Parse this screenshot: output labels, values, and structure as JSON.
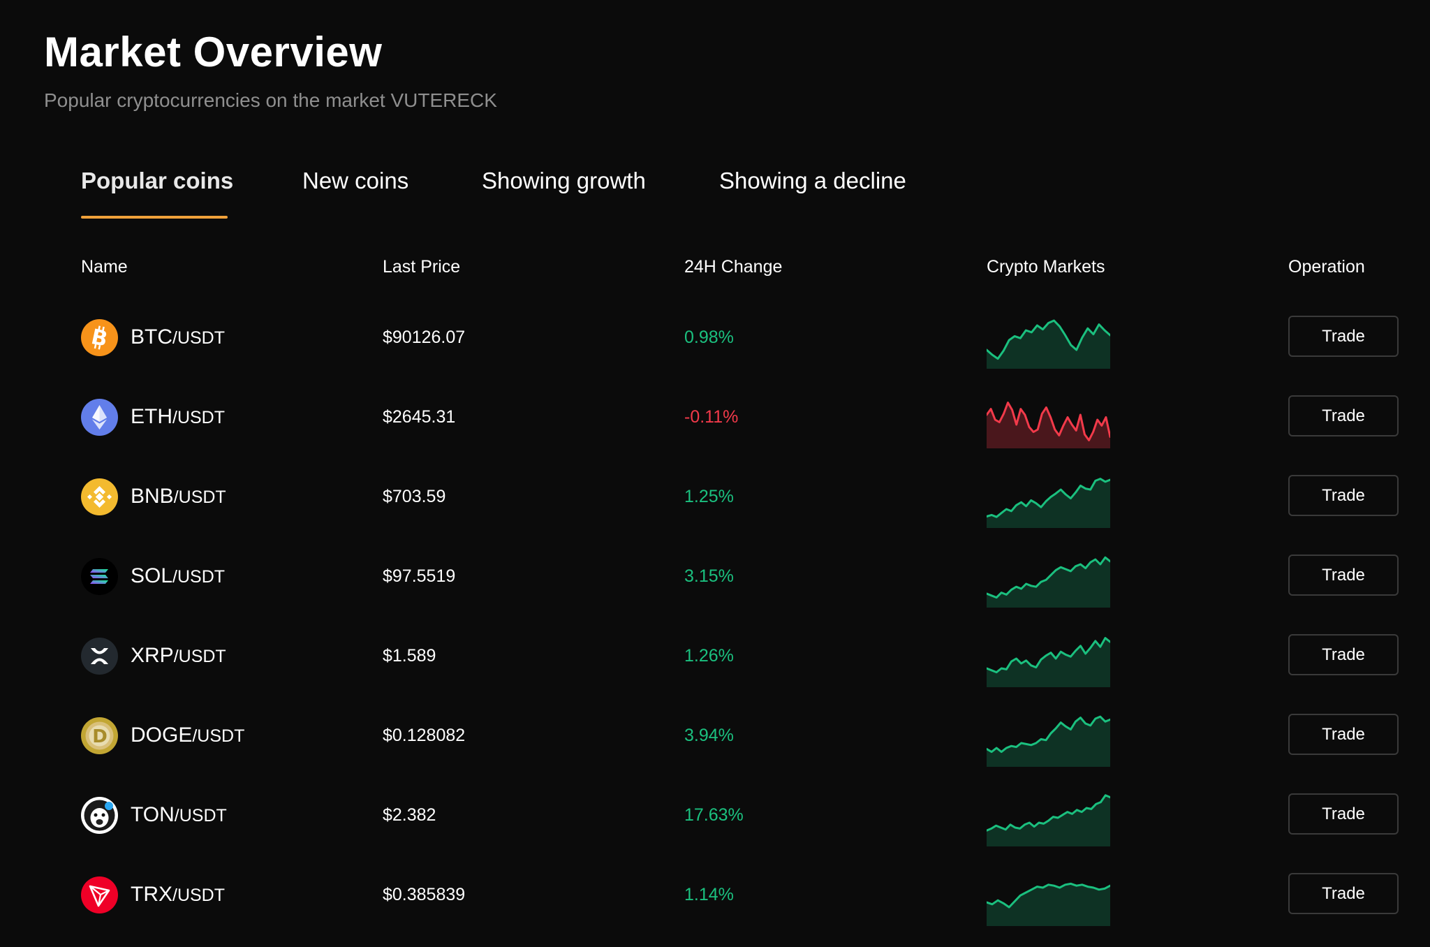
{
  "header": {
    "title": "Market Overview",
    "subtitle": "Popular cryptocurrencies on the market VUTERECK"
  },
  "tabs": [
    {
      "label": "Popular coins",
      "active": true
    },
    {
      "label": "New coins",
      "active": false
    },
    {
      "label": "Showing growth",
      "active": false
    },
    {
      "label": "Showing a decline",
      "active": false
    }
  ],
  "table": {
    "columns": [
      "Name",
      "Last Price",
      "24H Change",
      "Crypto Markets",
      "Operation"
    ],
    "rows": [
      {
        "base": "BTC",
        "quote": "/USDT",
        "price": "$90126.07",
        "change": "0.98%",
        "trend": "up",
        "icon": "bitcoin-icon",
        "spark": [
          30,
          20,
          12,
          28,
          50,
          58,
          54,
          70,
          66,
          80,
          72,
          85,
          90,
          78,
          60,
          40,
          30,
          55,
          74,
          62,
          82,
          70,
          60
        ]
      },
      {
        "base": "ETH",
        "quote": "/USDT",
        "price": "$2645.31",
        "change": "-0.11%",
        "trend": "down",
        "icon": "ethereum-icon",
        "spark": [
          60,
          72,
          50,
          45,
          62,
          85,
          70,
          40,
          72,
          60,
          35,
          25,
          30,
          62,
          75,
          55,
          30,
          18,
          38,
          55,
          40,
          28,
          60,
          20,
          8,
          25,
          50,
          38,
          55,
          15
        ]
      },
      {
        "base": "BNB",
        "quote": "/USDT",
        "price": "$703.59",
        "change": "1.25%",
        "trend": "up",
        "icon": "bnb-icon",
        "spark": [
          15,
          18,
          14,
          22,
          30,
          26,
          38,
          44,
          36,
          48,
          42,
          34,
          46,
          55,
          62,
          70,
          60,
          52,
          64,
          78,
          72,
          70,
          88,
          92,
          86,
          90
        ]
      },
      {
        "base": "SOL",
        "quote": "/USDT",
        "price": "$97.5519",
        "change": "3.15%",
        "trend": "up",
        "icon": "solana-icon",
        "spark": [
          20,
          16,
          12,
          22,
          18,
          28,
          34,
          30,
          40,
          36,
          34,
          44,
          48,
          58,
          68,
          74,
          70,
          66,
          76,
          80,
          72,
          84,
          90,
          80,
          94,
          86
        ]
      },
      {
        "base": "XRP",
        "quote": "/USDT",
        "price": "$1.589",
        "change": "1.26%",
        "trend": "up",
        "icon": "xrp-icon",
        "spark": [
          30,
          26,
          22,
          30,
          28,
          44,
          50,
          40,
          46,
          36,
          32,
          48,
          56,
          62,
          50,
          64,
          58,
          54,
          66,
          76,
          60,
          72,
          86,
          74,
          92,
          84
        ]
      },
      {
        "base": "DOGE",
        "quote": "/USDT",
        "price": "$0.128082",
        "change": "3.94%",
        "trend": "up",
        "icon": "dogecoin-icon",
        "spark": [
          28,
          22,
          30,
          22,
          30,
          34,
          32,
          40,
          38,
          36,
          40,
          48,
          46,
          60,
          70,
          82,
          74,
          68,
          84,
          92,
          80,
          76,
          90,
          94,
          84,
          88
        ]
      },
      {
        "base": "TON",
        "quote": "/USDT",
        "price": "$2.382",
        "change": "17.63%",
        "trend": "up",
        "icon": "toncoin-icon",
        "spark": [
          24,
          28,
          34,
          30,
          26,
          36,
          30,
          28,
          36,
          40,
          32,
          40,
          38,
          44,
          52,
          50,
          56,
          62,
          58,
          66,
          62,
          70,
          68,
          78,
          82,
          96,
          92
        ]
      },
      {
        "base": "TRX",
        "quote": "/USDT",
        "price": "$0.385839",
        "change": "1.14%",
        "trend": "up",
        "icon": "tron-icon",
        "spark": [
          40,
          36,
          44,
          38,
          30,
          42,
          54,
          60,
          66,
          72,
          70,
          76,
          74,
          70,
          76,
          78,
          74,
          76,
          72,
          70,
          66,
          68,
          74
        ]
      }
    ],
    "trade_label": "Trade"
  },
  "colors": {
    "background": "#0b0b0b",
    "accent": "#f0a13a",
    "up": "#1bc07f",
    "down": "#f23a4a",
    "muted": "#8f8f8f"
  }
}
